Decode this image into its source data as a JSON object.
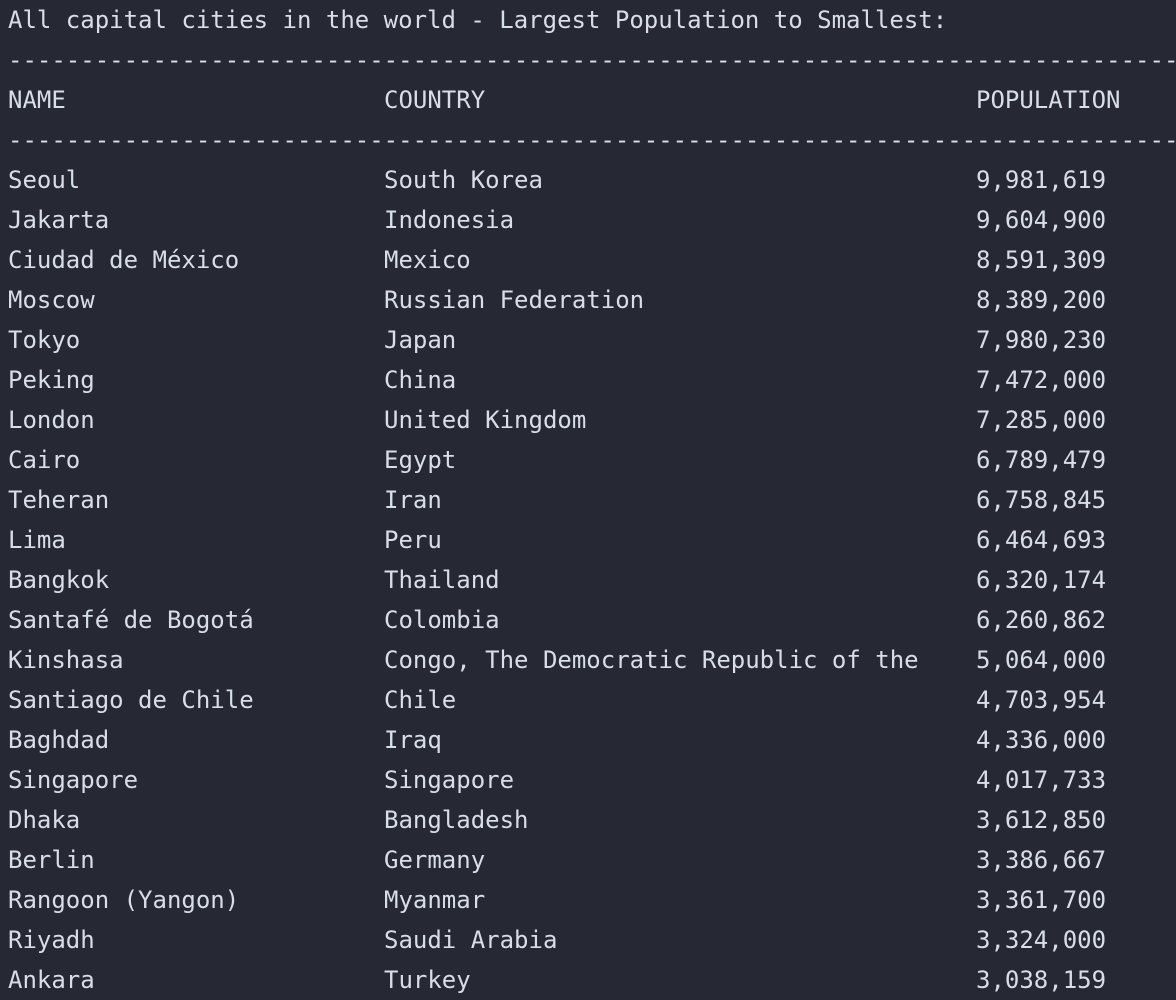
{
  "terminal": {
    "heading": "All capital cities in the world - Largest Population to Smallest:",
    "rule": "----------------------------------------------------------------------------------------------------------------"
  },
  "table": {
    "headers": {
      "name": "NAME",
      "country": "COUNTRY",
      "population": "POPULATION"
    },
    "rows": [
      {
        "name": "Seoul",
        "country": "South Korea",
        "population": "9,981,619"
      },
      {
        "name": "Jakarta",
        "country": "Indonesia",
        "population": "9,604,900"
      },
      {
        "name": "Ciudad de México",
        "country": "Mexico",
        "population": "8,591,309"
      },
      {
        "name": "Moscow",
        "country": "Russian Federation",
        "population": "8,389,200"
      },
      {
        "name": "Tokyo",
        "country": "Japan",
        "population": "7,980,230"
      },
      {
        "name": "Peking",
        "country": "China",
        "population": "7,472,000"
      },
      {
        "name": "London",
        "country": "United Kingdom",
        "population": "7,285,000"
      },
      {
        "name": "Cairo",
        "country": "Egypt",
        "population": "6,789,479"
      },
      {
        "name": "Teheran",
        "country": "Iran",
        "population": "6,758,845"
      },
      {
        "name": "Lima",
        "country": "Peru",
        "population": "6,464,693"
      },
      {
        "name": "Bangkok",
        "country": "Thailand",
        "population": "6,320,174"
      },
      {
        "name": "Santafé de Bogotá",
        "country": "Colombia",
        "population": "6,260,862"
      },
      {
        "name": "Kinshasa",
        "country": "Congo, The Democratic Republic of the",
        "population": "5,064,000"
      },
      {
        "name": "Santiago de Chile",
        "country": "Chile",
        "population": "4,703,954"
      },
      {
        "name": "Baghdad",
        "country": "Iraq",
        "population": "4,336,000"
      },
      {
        "name": "Singapore",
        "country": "Singapore",
        "population": "4,017,733"
      },
      {
        "name": "Dhaka",
        "country": "Bangladesh",
        "population": "3,612,850"
      },
      {
        "name": "Berlin",
        "country": "Germany",
        "population": "3,386,667"
      },
      {
        "name": "Rangoon (Yangon)",
        "country": "Myanmar",
        "population": "3,361,700"
      },
      {
        "name": "Riyadh",
        "country": "Saudi Arabia",
        "population": "3,324,000"
      },
      {
        "name": "Ankara",
        "country": "Turkey",
        "population": "3,038,159"
      }
    ]
  }
}
